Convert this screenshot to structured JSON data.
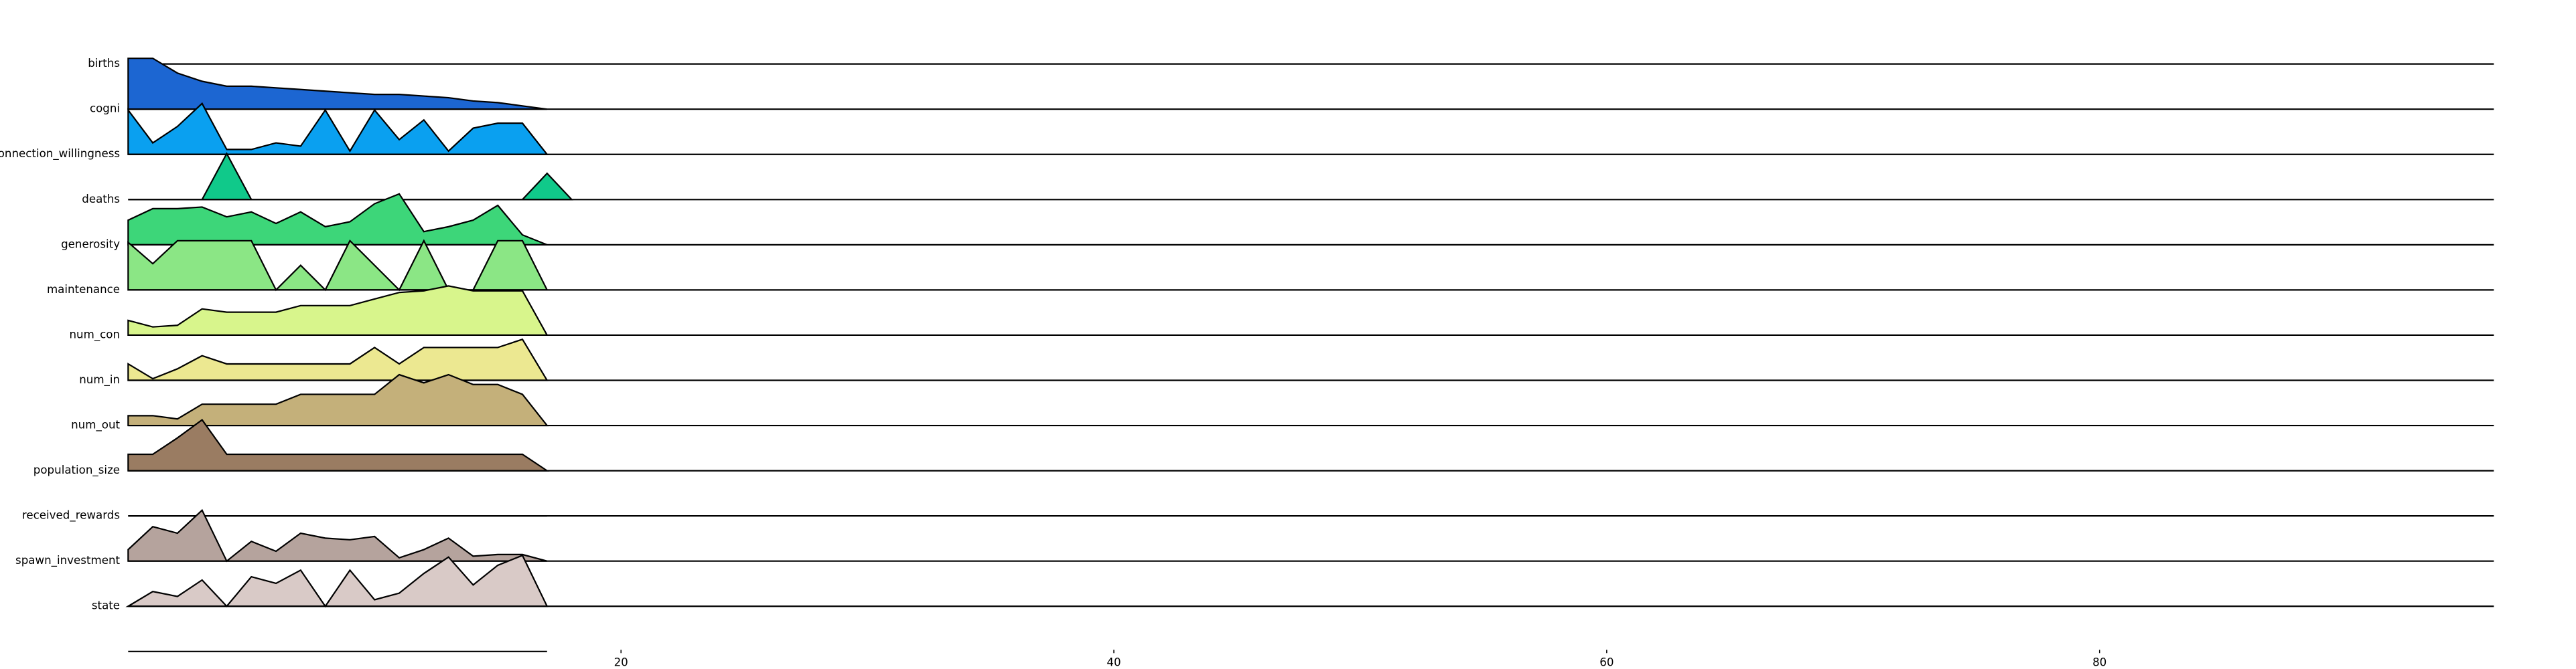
{
  "chart_data": {
    "type": "ridgeline",
    "x": [
      0,
      1,
      2,
      3,
      4,
      5,
      6,
      7,
      8,
      9,
      10,
      11,
      12,
      13,
      14,
      15,
      16,
      17,
      18
    ],
    "xlim": [
      0,
      96
    ],
    "xticks": [
      20,
      40,
      60,
      80
    ],
    "series": [
      {
        "name": "births",
        "color": "#1c66d2",
        "values": [
          31,
          31,
          22,
          17,
          14,
          14,
          13,
          12,
          11,
          10,
          9,
          9,
          8,
          7,
          5,
          4,
          2,
          0,
          null
        ]
      },
      {
        "name": "cogni",
        "color": "#0aa0f0",
        "values": [
          27,
          7,
          17,
          31,
          3,
          3,
          7,
          5,
          27,
          2,
          27,
          9,
          21,
          2,
          16,
          19,
          19,
          0,
          null
        ]
      },
      {
        "name": "connection_willingness",
        "color": "#10c98a",
        "values": [
          0,
          0,
          0,
          0,
          28,
          0,
          0,
          0,
          0,
          0,
          0,
          0,
          0,
          0,
          0,
          0,
          0,
          16,
          0
        ]
      },
      {
        "name": "deaths",
        "color": "#3dd679",
        "values": [
          15,
          22,
          22,
          23,
          17,
          20,
          13,
          20,
          11,
          14,
          25,
          31,
          8,
          11,
          15,
          24,
          6,
          0,
          null
        ]
      },
      {
        "name": "generosity",
        "color": "#8be685",
        "values": [
          29,
          16,
          30,
          30,
          30,
          30,
          0,
          15,
          0,
          30,
          15,
          0,
          30,
          0,
          0,
          30,
          30,
          0,
          null
        ]
      },
      {
        "name": "maintenance",
        "color": "#d8f58c",
        "values": [
          9,
          5,
          6,
          16,
          14,
          14,
          14,
          18,
          18,
          18,
          22,
          26,
          27,
          30,
          27,
          27,
          27,
          0,
          null
        ]
      },
      {
        "name": "num_con",
        "color": "#ece891",
        "values": [
          10,
          1,
          7,
          15,
          10,
          10,
          10,
          10,
          10,
          10,
          20,
          10,
          20,
          20,
          20,
          20,
          25,
          0,
          null
        ]
      },
      {
        "name": "num_in",
        "color": "#c4b07a",
        "values": [
          6,
          6,
          4,
          13,
          13,
          13,
          13,
          19,
          19,
          19,
          19,
          31,
          26,
          31,
          25,
          25,
          19,
          0,
          null
        ]
      },
      {
        "name": "num_out",
        "color": "#9a7c62",
        "values": [
          10,
          10,
          20,
          31,
          10,
          10,
          10,
          10,
          10,
          10,
          10,
          10,
          10,
          10,
          10,
          10,
          10,
          0,
          null
        ]
      },
      {
        "name": "population_size",
        "color": "#8a7a6e",
        "values": [
          0,
          0,
          0,
          0,
          0,
          0,
          0,
          0,
          0,
          0,
          0,
          0,
          0,
          0,
          0,
          0,
          0,
          0,
          null
        ]
      },
      {
        "name": "received_rewards",
        "color": "#b5a39d",
        "values": [
          7,
          21,
          17,
          31,
          0,
          12,
          6,
          17,
          14,
          13,
          15,
          2,
          7,
          14,
          3,
          4,
          4,
          0,
          null
        ]
      },
      {
        "name": "spawn_investment",
        "color": "#d9cac7",
        "values": [
          0,
          9,
          6,
          16,
          0,
          18,
          14,
          22,
          0,
          22,
          4,
          8,
          20,
          30,
          13,
          25,
          31,
          0,
          null
        ]
      },
      {
        "name": "state",
        "color": "#eeeeee",
        "values": [
          0,
          0,
          0,
          0,
          0,
          0,
          0,
          0,
          0,
          0,
          0,
          0,
          0,
          0,
          0,
          0,
          0,
          0,
          null
        ]
      }
    ]
  }
}
